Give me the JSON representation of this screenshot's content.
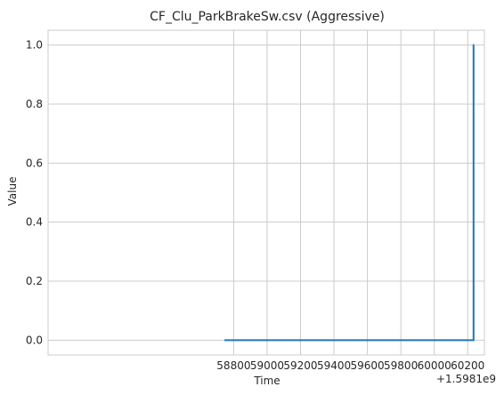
{
  "chart_data": {
    "type": "line",
    "title": "CF_Clu_ParkBrakeSw.csv (Aggressive)",
    "xlabel": "Time",
    "ylabel": "Value",
    "x_offset_label": "+1.5981e9",
    "xlim": [
      57690,
      60300
    ],
    "ylim": [
      -0.05,
      1.05
    ],
    "x_ticks": [
      58800,
      59000,
      59200,
      59400,
      59600,
      59800,
      60000,
      60200
    ],
    "x_tick_labels": [
      "58800",
      "59000",
      "59200",
      "59400",
      "59600",
      "59800",
      "60000",
      "60200"
    ],
    "y_ticks": [
      0.0,
      0.2,
      0.4,
      0.6,
      0.8,
      1.0
    ],
    "y_tick_labels": [
      "0.0",
      "0.2",
      "0.4",
      "0.6",
      "0.8",
      "1.0"
    ],
    "grid": true,
    "series": [
      {
        "color": "#1f77b4",
        "x": [
          58745,
          60235,
          60235,
          60238
        ],
        "y": [
          0,
          0,
          1,
          1
        ]
      }
    ]
  }
}
